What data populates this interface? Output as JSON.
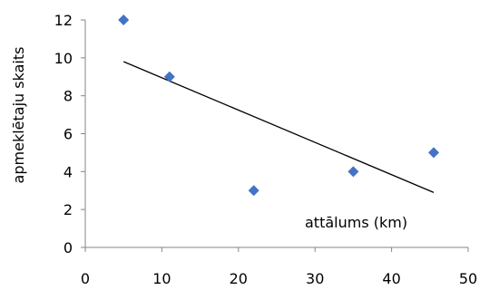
{
  "chart_data": {
    "type": "scatter",
    "title": "",
    "xlabel": "attālums (km)",
    "ylabel": "apmeklētaju skaits",
    "xlim": [
      0,
      50
    ],
    "ylim": [
      0,
      12
    ],
    "x_ticks": [
      "0",
      "10",
      "20",
      "30",
      "40",
      "50"
    ],
    "y_ticks": [
      "0",
      "2",
      "4",
      "6",
      "8",
      "10",
      "12"
    ],
    "grid": false,
    "legend": "none",
    "series": [
      {
        "x": [
          5,
          11,
          22,
          35,
          45.5
        ],
        "y": [
          12,
          9,
          3,
          4,
          5
        ],
        "marker": "diamond",
        "color": "#4472C4"
      }
    ],
    "trendline": {
      "type": "linear",
      "x": [
        5,
        45.5
      ],
      "y": [
        9.8,
        2.9
      ],
      "color": "#000000"
    }
  }
}
